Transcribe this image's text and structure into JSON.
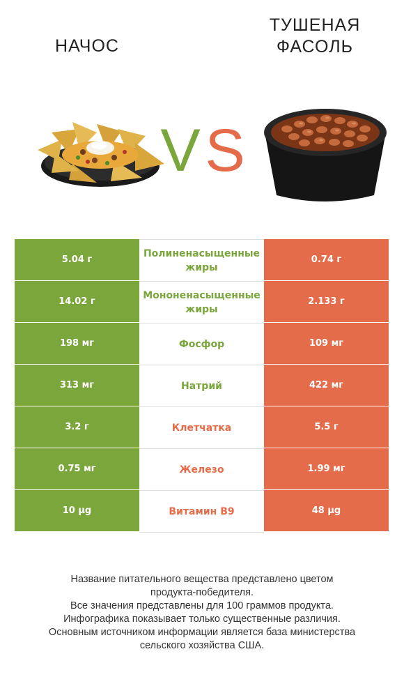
{
  "header": {
    "left_title_line1": "НАЧОС",
    "right_title_line1": "ТУШЕНАЯ",
    "right_title_line2": "ФАСОЛЬ",
    "vs_left": "V",
    "vs_right": "S"
  },
  "colors": {
    "left_product": "#7ba63b",
    "right_product": "#e46c4b"
  },
  "chart_data": {
    "type": "table",
    "columns": [
      "НАЧОС",
      "",
      "ТУШЕНАЯ ФАСОЛЬ"
    ],
    "rows": [
      {
        "nutrient_line1": "Полиненасыщенные",
        "nutrient_line2": "жиры",
        "left": "5.04 г",
        "right": "0.74 г",
        "winner": "left"
      },
      {
        "nutrient_line1": "Мононенасыщенные",
        "nutrient_line2": "жиры",
        "left": "14.02 г",
        "right": "2.133 г",
        "winner": "left"
      },
      {
        "nutrient_line1": "Фосфор",
        "nutrient_line2": "",
        "left": "198 мг",
        "right": "109 мг",
        "winner": "left"
      },
      {
        "nutrient_line1": "Натрий",
        "nutrient_line2": "",
        "left": "313 мг",
        "right": "422 мг",
        "winner": "left"
      },
      {
        "nutrient_line1": "Клетчатка",
        "nutrient_line2": "",
        "left": "3.2 г",
        "right": "5.5 г",
        "winner": "right"
      },
      {
        "nutrient_line1": "Железо",
        "nutrient_line2": "",
        "left": "0.75 мг",
        "right": "1.99 мг",
        "winner": "right"
      },
      {
        "nutrient_line1": "Витамин B9",
        "nutrient_line2": "",
        "left": "10 µg",
        "right": "48 µg",
        "winner": "right"
      }
    ]
  },
  "footnote": {
    "line1": "Название питательного вещества представлено цветом",
    "line2": "продукта-победителя.",
    "line3": "Все значения представлены для 100 граммов продукта.",
    "line4": "Инфографика показывает только существенные различия.",
    "line5": "Основным источником информации является база министерства",
    "line6": "сельского хозяйства США."
  }
}
